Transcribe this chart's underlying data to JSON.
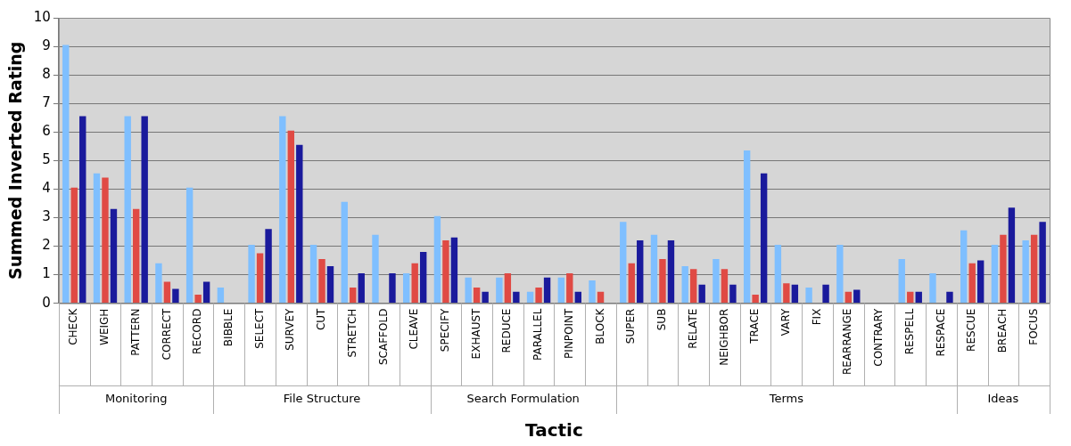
{
  "chart_data": {
    "type": "bar",
    "xlabel": "Tactic",
    "ylabel": "Summed Inverted Rating",
    "categories": [
      "CHECK",
      "WEIGH",
      "PATTERN",
      "CORRECT",
      "RECORD",
      "BIBBLE",
      "SELECT",
      "SURVEY",
      "CUT",
      "STRETCH",
      "SCAFFOLD",
      "CLEAVE",
      "SPECIFY",
      "EXHAUST",
      "REDUCE",
      "PARALLEL",
      "PINPOINT",
      "BLOCK",
      "SUPER",
      "SUB",
      "RELATE",
      "NEIGHBOR",
      "TRACE",
      "VARY",
      "FIX",
      "REARRANGE",
      "CONTRARY",
      "RESPELL",
      "RESPACE",
      "RESCUE",
      "BREACH",
      "FOCUS"
    ],
    "series": [
      {
        "color": "#7fbfff",
        "values": [
          9.05,
          4.55,
          6.55,
          1.4,
          4.05,
          0.55,
          2.05,
          6.55,
          2.05,
          3.55,
          2.4,
          1.05,
          3.05,
          0.9,
          0.9,
          0.4,
          0.9,
          0.8,
          2.85,
          2.4,
          1.3,
          1.55,
          5.35,
          2.05,
          0.55,
          2.05,
          0,
          1.55,
          1.05,
          2.55,
          2.05,
          2.2
        ]
      },
      {
        "color": "#e04a44",
        "values": [
          4.05,
          4.4,
          3.3,
          0.75,
          0.3,
          0,
          1.75,
          6.05,
          1.55,
          0.55,
          0,
          1.4,
          2.2,
          0.55,
          1.05,
          0.55,
          1.05,
          0.4,
          1.4,
          1.55,
          1.2,
          1.2,
          0.3,
          0.7,
          0,
          0.4,
          0,
          0.4,
          0,
          1.4,
          2.4,
          2.4
        ]
      },
      {
        "color": "#1a1a9c",
        "values": [
          6.55,
          3.3,
          6.55,
          0.5,
          0.75,
          0,
          2.6,
          5.55,
          1.3,
          1.05,
          1.05,
          1.8,
          2.3,
          0.4,
          0.4,
          0.9,
          0.4,
          0,
          2.2,
          2.2,
          0.65,
          0.65,
          4.55,
          0.65,
          0.65,
          0.47,
          0,
          0.4,
          0.4,
          1.5,
          3.35,
          2.85
        ]
      }
    ],
    "annotations": [
      "Monitoring",
      "File Structure",
      "Search Formulation",
      "Terms",
      "Ideas"
    ],
    "ylim": [
      0,
      10
    ],
    "yticks": [
      0,
      1,
      2,
      3,
      4,
      5,
      6,
      7,
      8,
      9,
      10
    ],
    "grid": true
  }
}
